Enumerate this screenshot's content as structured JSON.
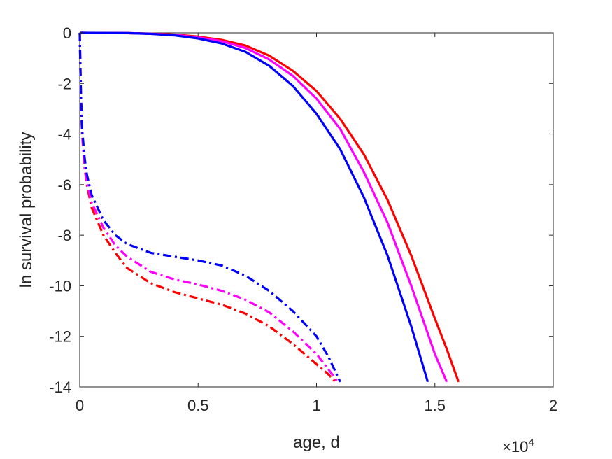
{
  "chart_data": {
    "type": "line",
    "xlabel": "age, d",
    "ylabel": "ln survival probability",
    "x_multiplier": "×10",
    "x_multiplier_exponent": "4",
    "xlim": [
      0,
      2
    ],
    "ylim": [
      -14,
      0
    ],
    "xticks": [
      "0",
      "0.5",
      "1",
      "1.5",
      "2"
    ],
    "yticks": [
      "0",
      "-2",
      "-4",
      "-6",
      "-8",
      "-10",
      "-12",
      "-14"
    ],
    "grid": false,
    "legend": "none",
    "series": [
      {
        "color": "#ff0000",
        "style": "solid",
        "x": [
          0.003,
          0.2,
          0.3,
          0.4,
          0.5,
          0.6,
          0.7,
          0.8,
          0.9,
          1.0,
          1.1,
          1.2,
          1.3,
          1.4,
          1.5,
          1.55,
          1.6
        ],
        "y": [
          0,
          -0.01,
          -0.03,
          -0.07,
          -0.15,
          -0.28,
          -0.5,
          -0.9,
          -1.5,
          -2.3,
          -3.4,
          -4.8,
          -6.6,
          -8.8,
          -11.3,
          -12.5,
          -13.8
        ]
      },
      {
        "color": "#ff00ff",
        "style": "solid",
        "x": [
          0.003,
          0.2,
          0.3,
          0.4,
          0.5,
          0.6,
          0.7,
          0.8,
          0.9,
          1.0,
          1.1,
          1.2,
          1.3,
          1.4,
          1.5,
          1.55
        ],
        "y": [
          0,
          -0.01,
          -0.04,
          -0.08,
          -0.18,
          -0.33,
          -0.6,
          -1.05,
          -1.7,
          -2.6,
          -3.8,
          -5.5,
          -7.5,
          -10.0,
          -12.7,
          -13.8
        ]
      },
      {
        "color": "#0000ff",
        "style": "solid",
        "x": [
          0.003,
          0.2,
          0.3,
          0.4,
          0.5,
          0.6,
          0.7,
          0.8,
          0.9,
          1.0,
          1.1,
          1.2,
          1.3,
          1.4,
          1.47
        ],
        "y": [
          0,
          -0.01,
          -0.04,
          -0.1,
          -0.22,
          -0.42,
          -0.75,
          -1.3,
          -2.1,
          -3.2,
          -4.6,
          -6.5,
          -8.8,
          -11.6,
          -13.8
        ]
      },
      {
        "color": "#ff0000",
        "style": "dashdot",
        "x": [
          0.0,
          0.005,
          0.01,
          0.02,
          0.03,
          0.05,
          0.1,
          0.15,
          0.2,
          0.3,
          0.4,
          0.5,
          0.6,
          0.7,
          0.8,
          0.9,
          1.0,
          1.05,
          1.08
        ],
        "y": [
          0,
          -2.5,
          -4.0,
          -5.3,
          -6.0,
          -6.9,
          -8.0,
          -8.7,
          -9.3,
          -9.9,
          -10.25,
          -10.5,
          -10.75,
          -11.1,
          -11.6,
          -12.3,
          -13.1,
          -13.5,
          -13.8
        ]
      },
      {
        "color": "#ff00ff",
        "style": "dashdot",
        "x": [
          0.0,
          0.005,
          0.01,
          0.02,
          0.03,
          0.05,
          0.1,
          0.15,
          0.2,
          0.3,
          0.4,
          0.5,
          0.6,
          0.7,
          0.8,
          0.9,
          1.0,
          1.05,
          1.09
        ],
        "y": [
          0,
          -2.5,
          -4.0,
          -5.2,
          -5.9,
          -6.7,
          -7.7,
          -8.4,
          -8.85,
          -9.45,
          -9.75,
          -9.95,
          -10.2,
          -10.55,
          -11.05,
          -11.8,
          -12.7,
          -13.3,
          -13.8
        ]
      },
      {
        "color": "#0000ff",
        "style": "dashdot",
        "x": [
          0.0,
          0.005,
          0.01,
          0.02,
          0.03,
          0.05,
          0.1,
          0.15,
          0.2,
          0.3,
          0.4,
          0.5,
          0.6,
          0.7,
          0.8,
          0.9,
          1.0,
          1.05,
          1.1
        ],
        "y": [
          0,
          -2.5,
          -3.8,
          -4.9,
          -5.6,
          -6.4,
          -7.4,
          -8.0,
          -8.35,
          -8.7,
          -8.85,
          -9.0,
          -9.2,
          -9.6,
          -10.2,
          -11.0,
          -12.0,
          -12.8,
          -13.8
        ]
      }
    ]
  }
}
